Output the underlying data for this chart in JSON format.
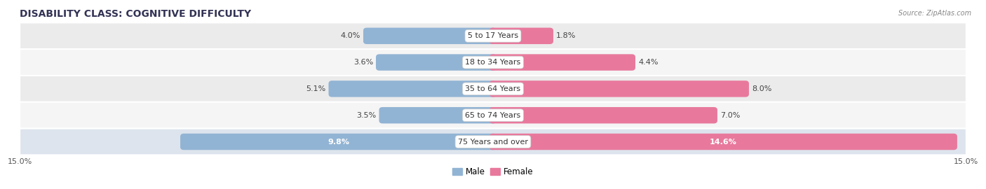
{
  "title": "DISABILITY CLASS: COGNITIVE DIFFICULTY",
  "source": "Source: ZipAtlas.com",
  "categories": [
    "5 to 17 Years",
    "18 to 34 Years",
    "35 to 64 Years",
    "65 to 74 Years",
    "75 Years and over"
  ],
  "male_values": [
    4.0,
    3.6,
    5.1,
    3.5,
    9.8
  ],
  "female_values": [
    1.8,
    4.4,
    8.0,
    7.0,
    14.6
  ],
  "max_val": 15.0,
  "male_color": "#92b4d4",
  "female_color": "#e8799d",
  "male_label": "Male",
  "female_label": "Female",
  "row_colors": [
    "#ebebeb",
    "#f5f5f5",
    "#ebebeb",
    "#f5f5f5",
    "#dde4ed"
  ],
  "title_fontsize": 10,
  "label_fontsize": 8,
  "tick_fontsize": 8,
  "bar_height": 0.62
}
